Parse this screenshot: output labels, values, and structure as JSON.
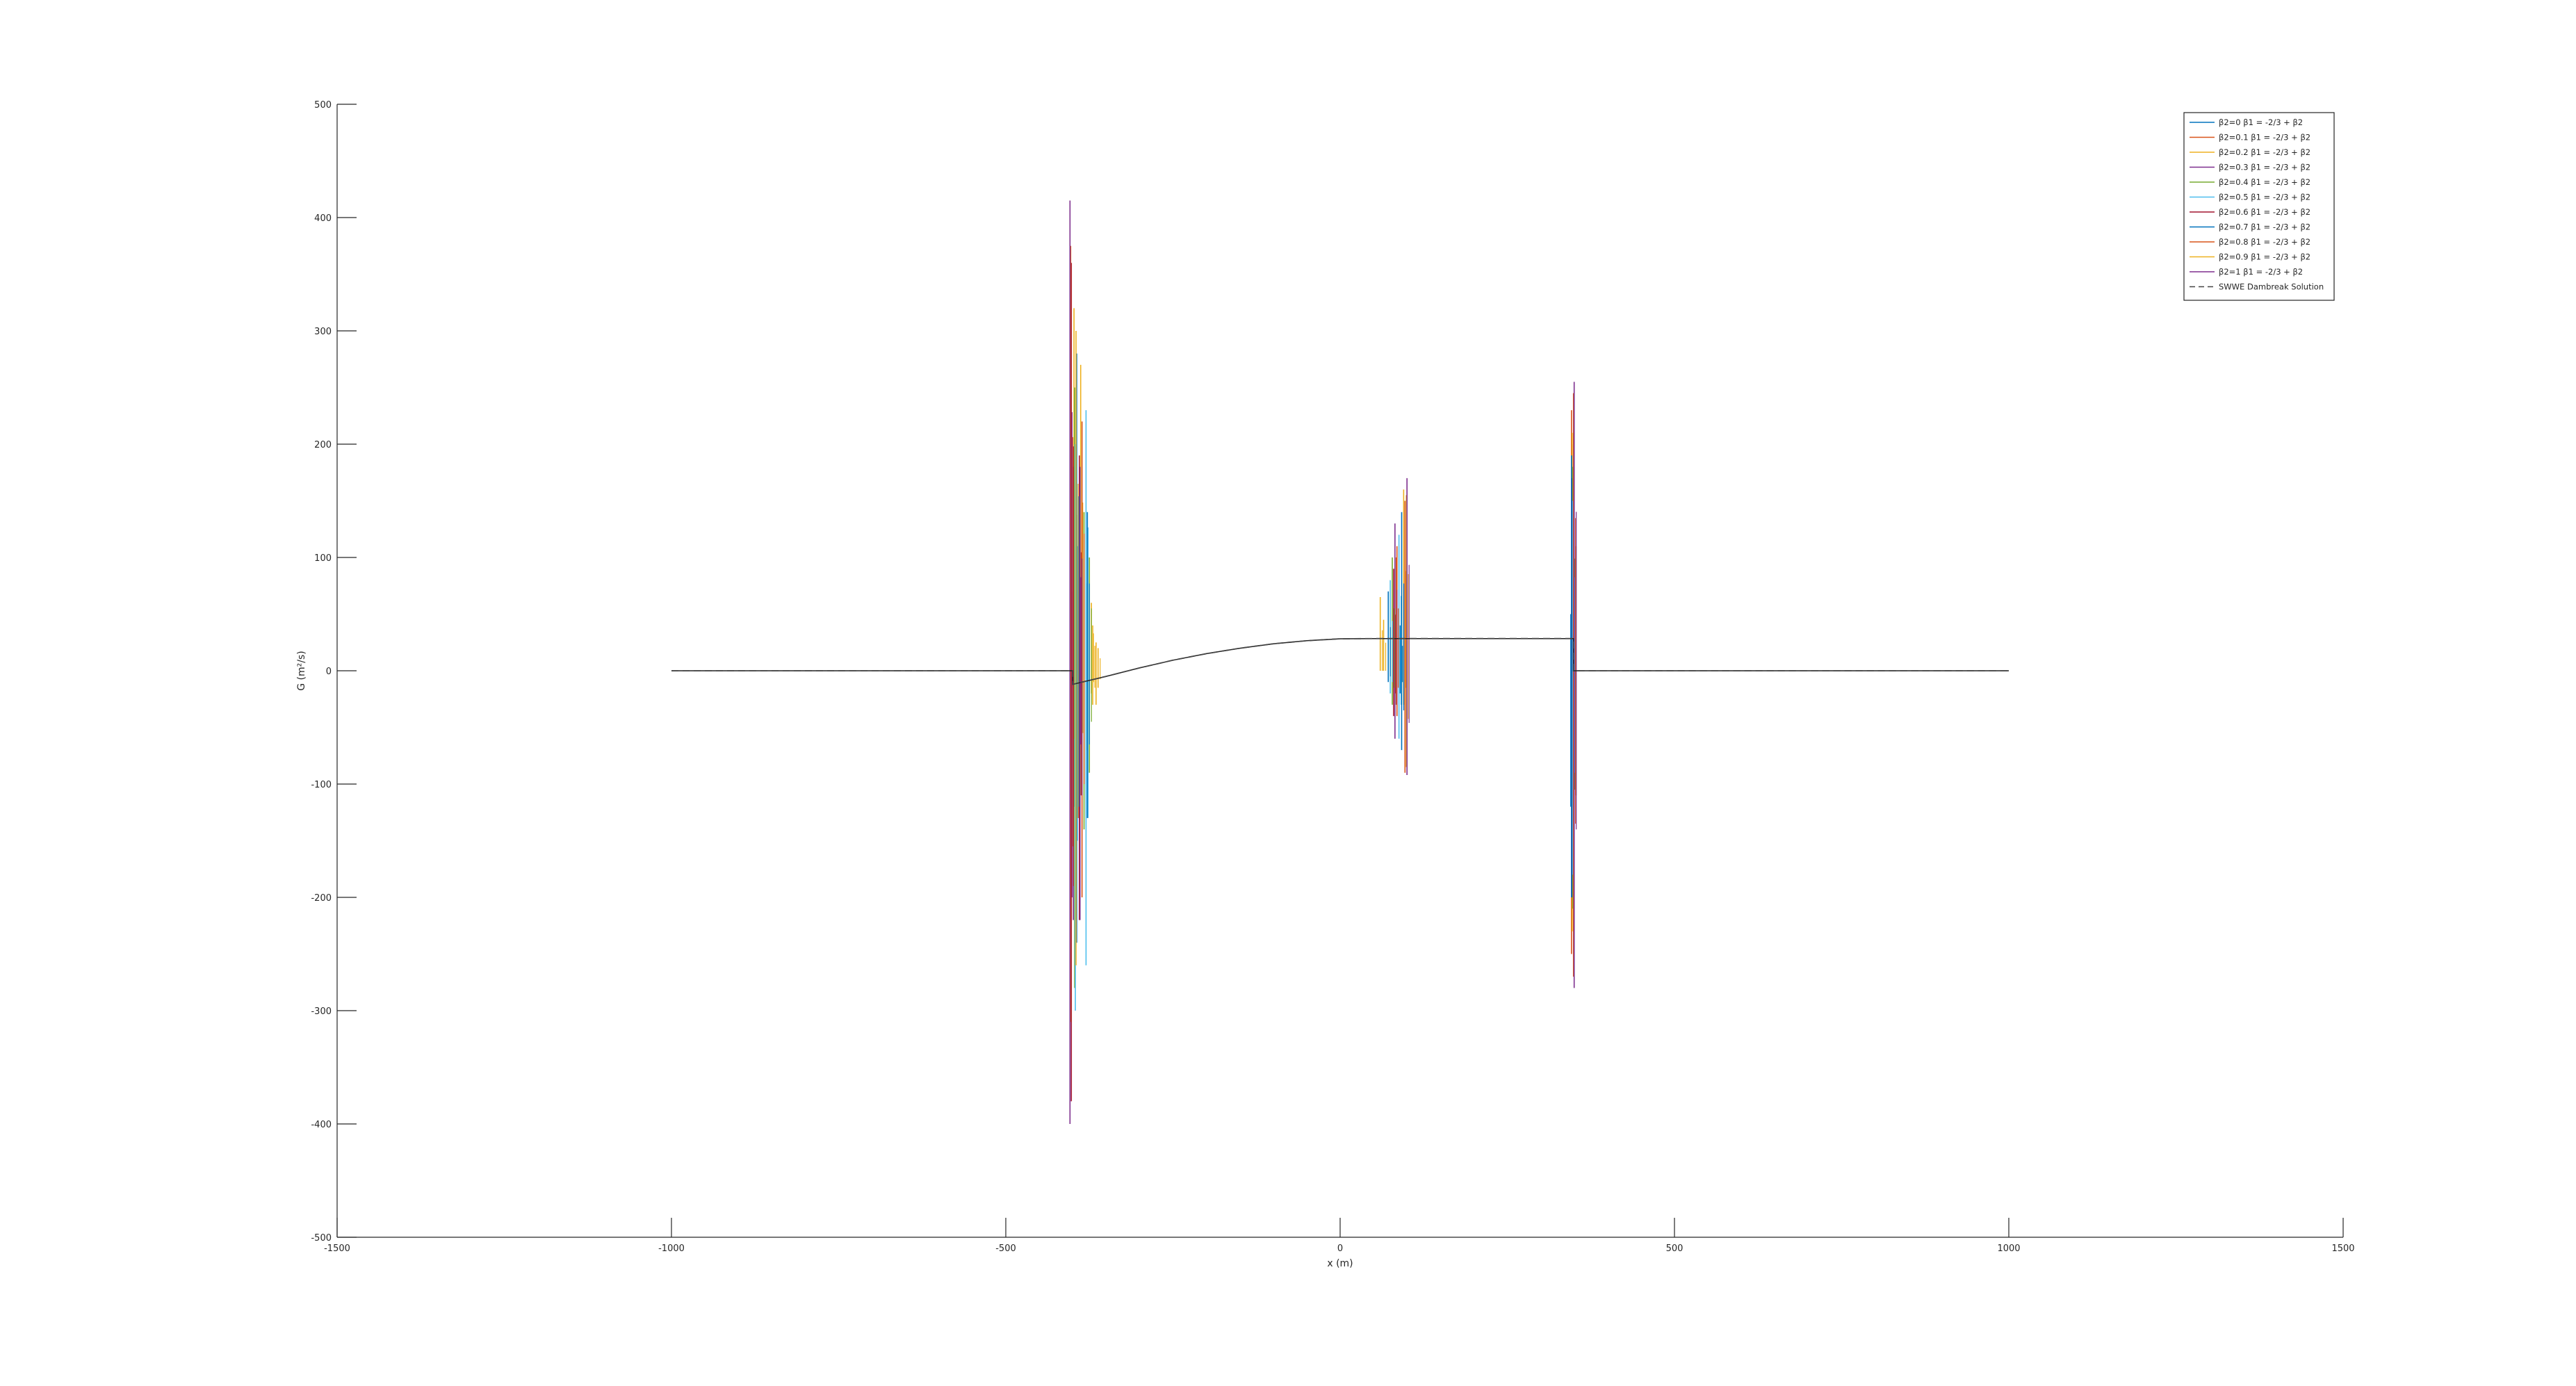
{
  "chart_data": {
    "type": "line",
    "title": "",
    "xlabel": "x (m)",
    "ylabel": "G (m²/s)",
    "xlim": [
      -1500,
      1500
    ],
    "ylim": [
      -500,
      500
    ],
    "xticks": [
      -1500,
      -1000,
      -500,
      0,
      500,
      1000,
      1500
    ],
    "yticks": [
      -500,
      -400,
      -300,
      -200,
      -100,
      0,
      100,
      200,
      300,
      400,
      500
    ],
    "xtick_labels": [
      "-1500",
      "-1000",
      "-500",
      "0",
      "500",
      "1000",
      "1500"
    ],
    "ytick_labels": [
      "-500",
      "-400",
      "-300",
      "-200",
      "-100",
      "0",
      "100",
      "200",
      "300",
      "400",
      "500"
    ],
    "grid": false,
    "legend_position": "top-right",
    "series": [
      {
        "name": "β2=0  β1 = -2/3 + β2",
        "color": "#0072bd",
        "spikes": [
          [
            -401,
            10,
            -30
          ],
          [
            -397,
            60,
            -120
          ],
          [
            -393,
            40,
            -100
          ],
          [
            345,
            50,
            -120
          ],
          [
            348,
            40,
            -60
          ],
          [
            90,
            40,
            -20
          ]
        ]
      },
      {
        "name": "β2=0.1  β1 = -2/3 + β2",
        "color": "#d95319",
        "spikes": [
          [
            -400,
            70,
            -70
          ],
          [
            -395,
            120,
            -110
          ],
          [
            -392,
            60,
            -50
          ],
          [
            346,
            230,
            -250
          ],
          [
            349,
            120,
            -130
          ],
          [
            85,
            110,
            -40
          ]
        ]
      },
      {
        "name": "β2=0.2  β1 = -2/3 + β2",
        "color": "#edb120",
        "spikes": [
          [
            -398,
            320,
            -60
          ],
          [
            -388,
            270,
            -110
          ],
          [
            -372,
            60,
            -20
          ],
          [
            -365,
            25,
            -30
          ],
          [
            347,
            210,
            -230
          ],
          [
            60,
            65,
            0
          ],
          [
            95,
            160,
            -30
          ]
        ]
      },
      {
        "name": "β2=0.3  β1 = -2/3 + β2",
        "color": "#7e2f8e",
        "spikes": [
          [
            -399,
            180,
            -220
          ],
          [
            -391,
            150,
            -130
          ],
          [
            347,
            170,
            -200
          ],
          [
            82,
            130,
            -60
          ]
        ]
      },
      {
        "name": "β2=0.4  β1 = -2/3 + β2",
        "color": "#77ac30",
        "spikes": [
          [
            -397,
            250,
            -280
          ],
          [
            -383,
            140,
            -140
          ],
          [
            -375,
            100,
            -90
          ],
          [
            348,
            180,
            -210
          ],
          [
            78,
            100,
            -30
          ]
        ]
      },
      {
        "name": "β2=0.5  β1 = -2/3 + β2",
        "color": "#4dbeee",
        "spikes": [
          [
            -396,
            200,
            -300
          ],
          [
            -380,
            230,
            -260
          ],
          [
            348,
            150,
            -180
          ],
          [
            75,
            80,
            -20
          ],
          [
            88,
            120,
            -60
          ]
        ]
      },
      {
        "name": "β2=0.6  β1 = -2/3 + β2",
        "color": "#a2142f",
        "spikes": [
          [
            -402,
            360,
            -380
          ],
          [
            -390,
            190,
            -220
          ],
          [
            349,
            200,
            -220
          ],
          [
            80,
            90,
            -40
          ]
        ]
      },
      {
        "name": "β2=0.7  β1 = -2/3 + β2",
        "color": "#0072bd",
        "spikes": [
          [
            -394,
            280,
            -240
          ],
          [
            -378,
            140,
            -130
          ],
          [
            346,
            190,
            -200
          ],
          [
            72,
            70,
            -10
          ],
          [
            92,
            140,
            -70
          ]
        ]
      },
      {
        "name": "β2=0.8  β1 = -2/3 + β2",
        "color": "#d95319",
        "spikes": [
          [
            -403,
            375,
            -310
          ],
          [
            -386,
            220,
            -200
          ],
          [
            349,
            245,
            -270
          ],
          [
            84,
            100,
            -30
          ],
          [
            97,
            150,
            -90
          ]
        ]
      },
      {
        "name": "β2=0.9  β1 = -2/3 + β2",
        "color": "#edb120",
        "spikes": [
          [
            -395,
            300,
            -260
          ],
          [
            -370,
            40,
            -30
          ],
          [
            -362,
            20,
            -15
          ],
          [
            350,
            200,
            -220
          ],
          [
            65,
            45,
            0
          ],
          [
            99,
            155,
            -85
          ]
        ]
      },
      {
        "name": "β2=1  β1 = -2/3 + β2",
        "color": "#7e2f8e",
        "spikes": [
          [
            -404,
            415,
            -400
          ],
          [
            -389,
            180,
            -220
          ],
          [
            350,
            255,
            -280
          ],
          [
            100,
            170,
            -92
          ]
        ]
      }
    ],
    "reference": {
      "name": "SWWE Dambreak Solution",
      "color": "#444444",
      "dash": "dashed",
      "x": [
        -1000,
        -400,
        -400,
        -350,
        -300,
        -250,
        -200,
        -150,
        -100,
        -50,
        0,
        50,
        100,
        150,
        200,
        250,
        300,
        349,
        349,
        1000
      ],
      "y": [
        0,
        0,
        -12,
        -5,
        2.5,
        9.3,
        15.1,
        19.9,
        23.8,
        26.5,
        28.2,
        28.4,
        28.4,
        28.4,
        28.4,
        28.4,
        28.4,
        28.4,
        0,
        0
      ]
    }
  }
}
